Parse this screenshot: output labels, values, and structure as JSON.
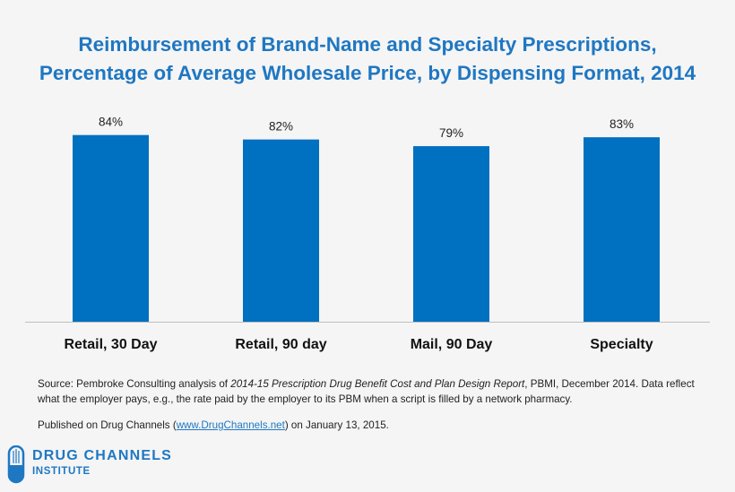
{
  "chart_data": {
    "type": "bar",
    "title": "Reimbursement of Brand-Name and Specialty Prescriptions, Percentage of Average Wholesale Price, by Dispensing Format, 2014",
    "title_lines": [
      "Reimbursement of Brand-Name and Specialty Prescriptions,",
      "Percentage of Average Wholesale Price, by Dispensing Format, 2014"
    ],
    "categories": [
      "Retail, 30 Day",
      "Retail, 90 day",
      "Mail, 90 Day",
      "Specialty"
    ],
    "values": [
      84,
      82,
      79,
      83
    ],
    "data_labels": [
      "84%",
      "82%",
      "79%",
      "83%"
    ],
    "xlabel": "",
    "ylabel": "",
    "ylim": [
      0,
      100
    ],
    "grid": false,
    "bar_color": "#0070c0",
    "title_color": "#1f77c2"
  },
  "notes": {
    "source_prefix": "Source: Pembroke Consulting analysis of ",
    "source_italic": "2014-15 Prescription Drug Benefit Cost and Plan Design Report",
    "source_suffix": ", PBMI, December 2014. Data reflect what the employer pays, e.g., the rate paid by the employer to its PBM when a script is filled by a network pharmacy.",
    "published_prefix": "Published on Drug Channels (",
    "published_link": "www.DrugChannels.net",
    "published_suffix": ") on January 13, 2015."
  },
  "logo": {
    "line1": "DRUG CHANNELS",
    "line2": "INSTITUTE",
    "icon": "capsule-icon"
  }
}
